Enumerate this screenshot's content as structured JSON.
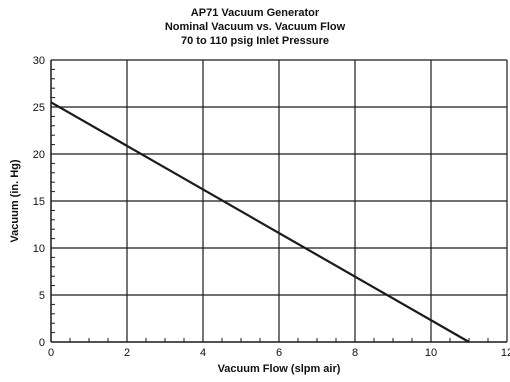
{
  "chart_data": {
    "type": "line",
    "title": "AP71 Vacuum Generator",
    "subtitle": [
      "Nominal Vacuum vs. Vacuum Flow",
      "70 to 110 psig Inlet Pressure"
    ],
    "xlabel": "Vacuum Flow (slpm air)",
    "ylabel": "Vacuum (in. Hg)",
    "xlim": [
      0,
      12
    ],
    "ylim": [
      0,
      30
    ],
    "xticks": [
      0,
      2,
      4,
      6,
      8,
      10,
      12
    ],
    "yticks": [
      0,
      5,
      10,
      15,
      20,
      25,
      30
    ],
    "x_minor_step": 0.5,
    "y_minor_step": 1,
    "grid": true,
    "series": [
      {
        "x": [
          0,
          11
        ],
        "y": [
          25.5,
          0
        ]
      }
    ],
    "colors": {
      "line": "#1a1a1a",
      "grid": "#1a1a1a",
      "axis": "#1a1a1a"
    }
  }
}
